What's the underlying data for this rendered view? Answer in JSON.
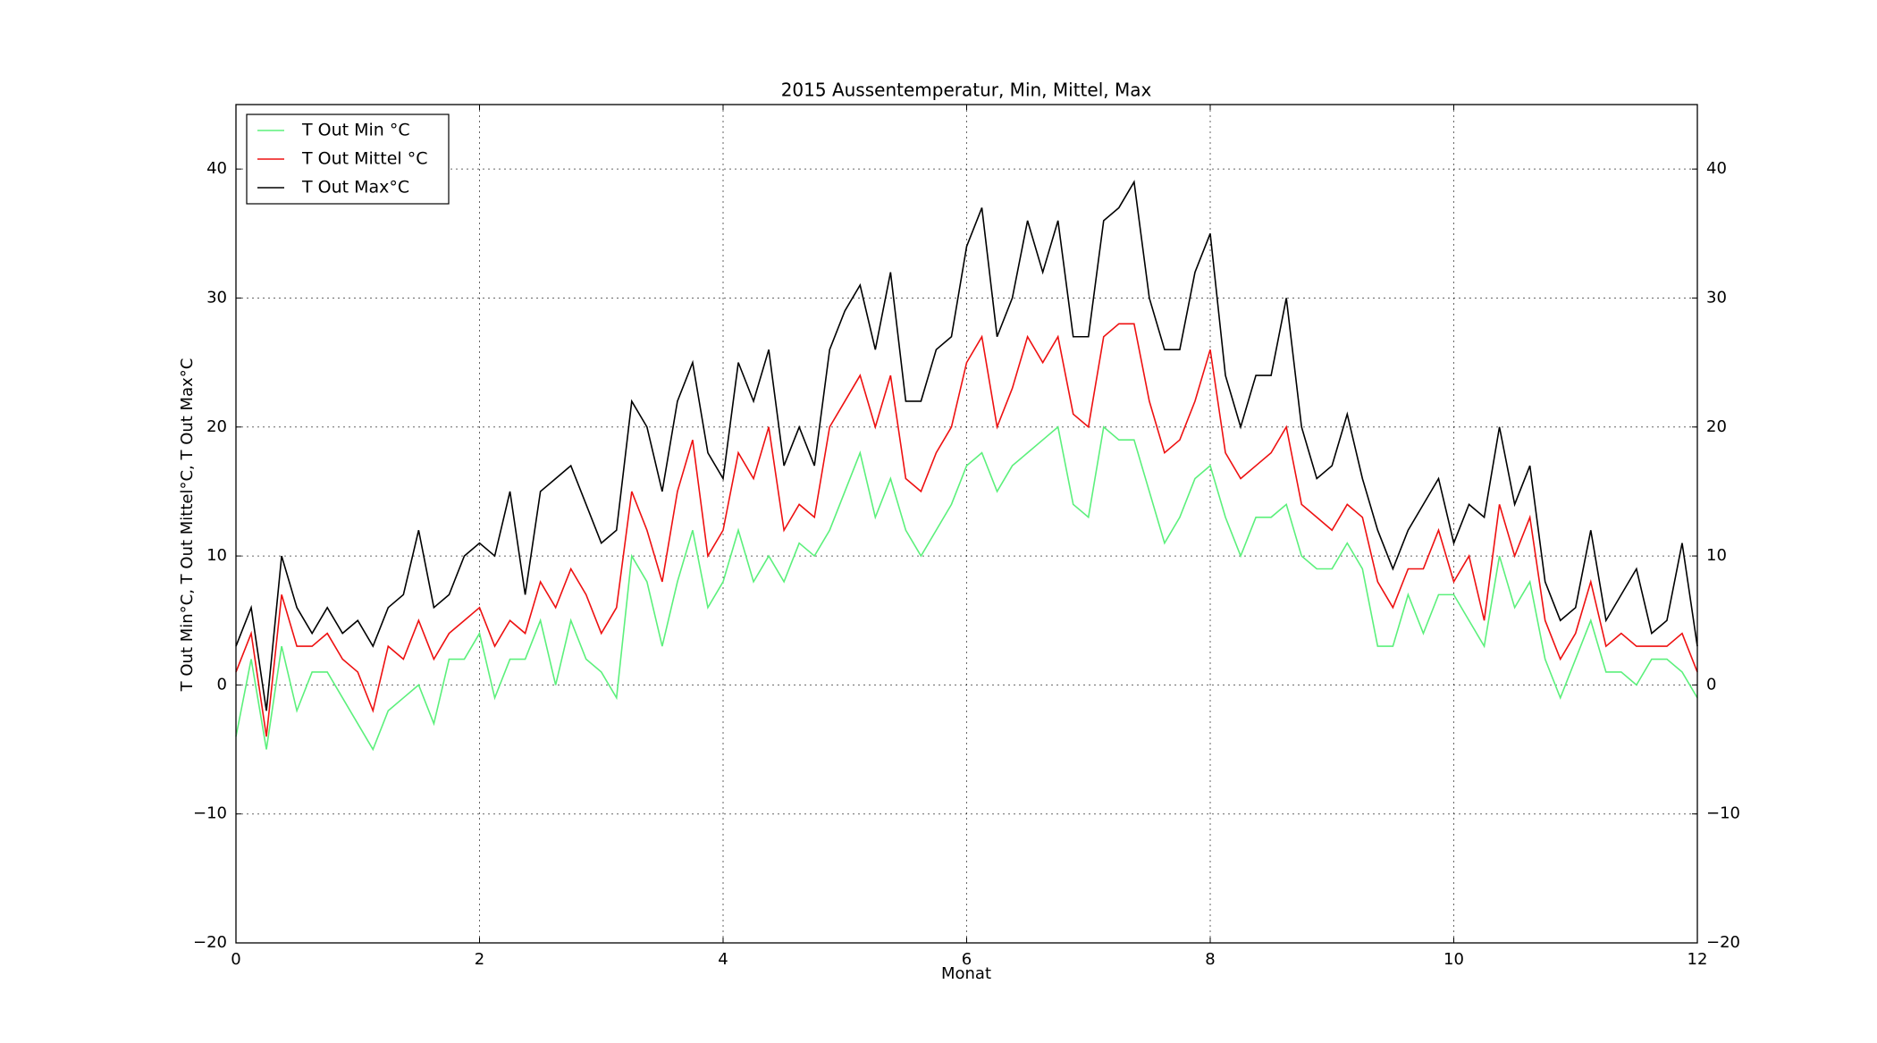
{
  "chart_data": {
    "type": "line",
    "title": "2015 Aussentemperatur, Min, Mittel, Max",
    "xlabel": "Monat",
    "ylabel": "T Out Min°C, T Out Mittel°C, T Out Max°C",
    "x": [
      0,
      0.125,
      0.25,
      0.375,
      0.5,
      0.625,
      0.75,
      0.875,
      1,
      1.125,
      1.25,
      1.375,
      1.5,
      1.625,
      1.75,
      1.875,
      2,
      2.125,
      2.25,
      2.375,
      2.5,
      2.625,
      2.75,
      2.875,
      3,
      3.125,
      3.25,
      3.375,
      3.5,
      3.625,
      3.75,
      3.875,
      4,
      4.125,
      4.25,
      4.375,
      4.5,
      4.625,
      4.75,
      4.875,
      5,
      5.125,
      5.25,
      5.375,
      5.5,
      5.625,
      5.75,
      5.875,
      6,
      6.125,
      6.25,
      6.375,
      6.5,
      6.625,
      6.75,
      6.875,
      7,
      7.125,
      7.25,
      7.375,
      7.5,
      7.625,
      7.75,
      7.875,
      8,
      8.125,
      8.25,
      8.375,
      8.5,
      8.625,
      8.75,
      8.875,
      9,
      9.125,
      9.25,
      9.375,
      9.5,
      9.625,
      9.75,
      9.875,
      10,
      10.125,
      10.25,
      10.375,
      10.5,
      10.625,
      10.75,
      10.875,
      11,
      11.125,
      11.25,
      11.375,
      11.5,
      11.625,
      11.75,
      11.875,
      12
    ],
    "series": [
      {
        "name": "T Out Min °C",
        "color": "#5cf07c",
        "values": [
          -4,
          2,
          -5,
          3,
          -2,
          1,
          1,
          -1,
          -3,
          -5,
          -2,
          -1,
          0,
          -3,
          2,
          2,
          4,
          -1,
          2,
          2,
          5,
          0,
          5,
          2,
          1,
          -1,
          10,
          8,
          3,
          8,
          12,
          6,
          8,
          12,
          8,
          10,
          8,
          11,
          10,
          12,
          15,
          18,
          13,
          16,
          12,
          10,
          12,
          14,
          17,
          18,
          15,
          17,
          18,
          19,
          20,
          14,
          13,
          20,
          19,
          19,
          15,
          11,
          13,
          16,
          17,
          13,
          10,
          13,
          13,
          14,
          10,
          9,
          9,
          11,
          9,
          3,
          3,
          7,
          4,
          7,
          7,
          5,
          3,
          10,
          6,
          8,
          2,
          -1,
          2,
          5,
          1,
          1,
          0,
          2,
          2,
          1,
          -1
        ]
      },
      {
        "name": "T Out Mittel °C",
        "color": "#ee1111",
        "values": [
          1,
          4,
          -4,
          7,
          3,
          3,
          4,
          2,
          1,
          -2,
          3,
          2,
          5,
          2,
          4,
          5,
          6,
          3,
          5,
          4,
          8,
          6,
          9,
          7,
          4,
          6,
          15,
          12,
          8,
          15,
          19,
          10,
          12,
          18,
          16,
          20,
          12,
          14,
          13,
          20,
          22,
          24,
          20,
          24,
          16,
          15,
          18,
          20,
          25,
          27,
          20,
          23,
          27,
          25,
          27,
          21,
          20,
          27,
          28,
          28,
          22,
          18,
          19,
          22,
          26,
          18,
          16,
          17,
          18,
          20,
          14,
          13,
          12,
          14,
          13,
          8,
          6,
          9,
          9,
          12,
          8,
          10,
          5,
          14,
          10,
          13,
          5,
          2,
          4,
          8,
          3,
          4,
          3,
          3,
          3,
          4,
          1
        ]
      },
      {
        "name": "T Out Max°C",
        "color": "#000000",
        "values": [
          3,
          6,
          -2,
          10,
          6,
          4,
          6,
          4,
          5,
          3,
          6,
          7,
          12,
          6,
          7,
          10,
          11,
          10,
          15,
          7,
          15,
          16,
          17,
          14,
          11,
          12,
          22,
          20,
          15,
          22,
          25,
          18,
          16,
          25,
          22,
          26,
          17,
          20,
          17,
          26,
          29,
          31,
          26,
          32,
          22,
          22,
          26,
          27,
          34,
          37,
          27,
          30,
          36,
          32,
          36,
          27,
          27,
          36,
          37,
          39,
          30,
          26,
          26,
          32,
          35,
          24,
          20,
          24,
          24,
          30,
          20,
          16,
          17,
          21,
          16,
          12,
          9,
          12,
          14,
          16,
          11,
          14,
          13,
          20,
          14,
          17,
          8,
          5,
          6,
          12,
          5,
          7,
          9,
          4,
          5,
          11,
          3
        ]
      }
    ],
    "xlim": [
      0,
      12
    ],
    "xticks": [
      0,
      2,
      4,
      6,
      8,
      10,
      12
    ],
    "ylim": [
      -20,
      45
    ],
    "yticks": [
      {
        "value": -20,
        "label": "−20"
      },
      {
        "value": -10,
        "label": "−10"
      },
      0,
      10,
      20,
      30,
      40
    ],
    "y2lim": [
      -20,
      45
    ],
    "y2ticks": [
      {
        "value": -20,
        "label": "−20"
      },
      {
        "value": -10,
        "label": "−10"
      },
      0,
      10,
      20,
      30,
      40
    ],
    "grid": true,
    "legend": "upper left"
  }
}
